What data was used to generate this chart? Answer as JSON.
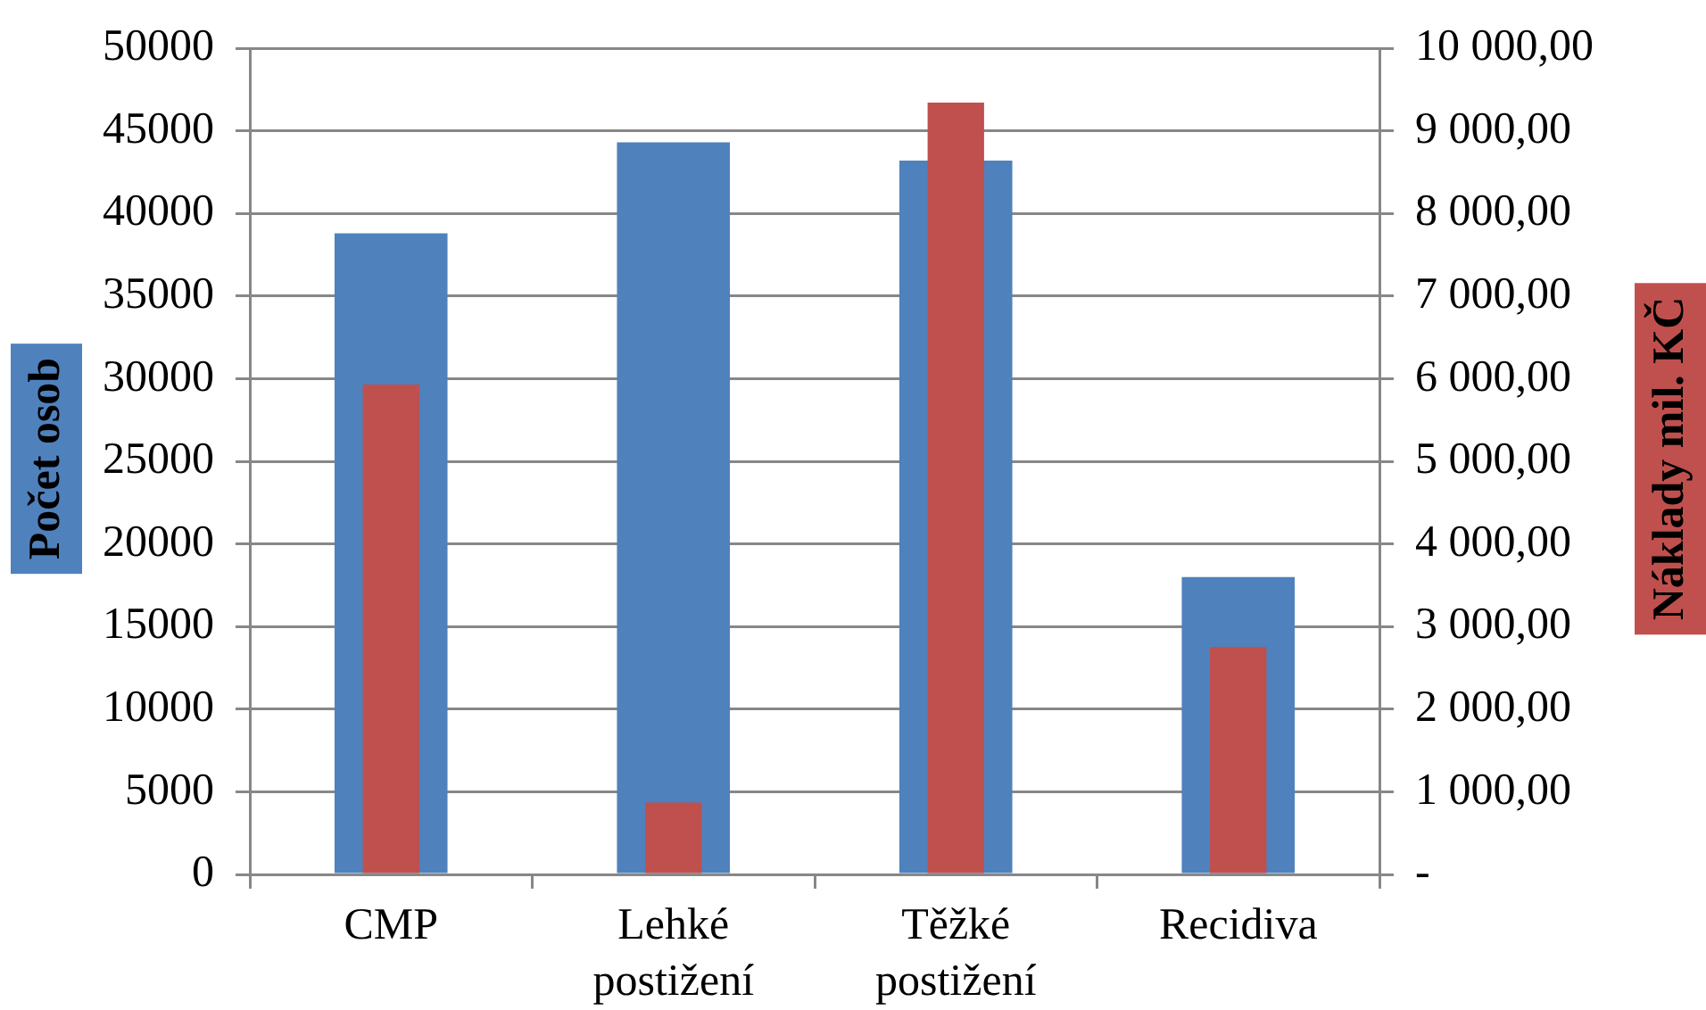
{
  "chart_data": {
    "type": "bar",
    "categories": [
      "CMP",
      "Lehké postižení",
      "Těžké postižení",
      "Recidiva"
    ],
    "ylabel": "Počet osob",
    "y2label": "Náklady mil. KČ",
    "series": [
      {
        "color": "#4f81bd",
        "values": [
          38800,
          44300,
          43200,
          18000
        ]
      },
      {
        "color": "#c0504d",
        "axis": "y2",
        "values": [
          5930,
          870,
          9340,
          2750
        ]
      }
    ],
    "ylim": [
      0,
      50000
    ],
    "yticks": [
      0,
      5000,
      10000,
      15000,
      20000,
      25000,
      30000,
      35000,
      40000,
      45000,
      50000
    ],
    "y2lim": [
      0,
      10000
    ],
    "y2ticks": [
      {
        "value": 0,
        "label": "-"
      },
      {
        "value": 1000,
        "label": "1 000,00"
      },
      {
        "value": 2000,
        "label": "2 000,00"
      },
      {
        "value": 3000,
        "label": "3 000,00"
      },
      {
        "value": 4000,
        "label": "4 000,00"
      },
      {
        "value": 5000,
        "label": "5 000,00"
      },
      {
        "value": 6000,
        "label": "6 000,00"
      },
      {
        "value": 7000,
        "label": "7 000,00"
      },
      {
        "value": 8000,
        "label": "8 000,00"
      },
      {
        "value": 9000,
        "label": "9 000,00"
      },
      {
        "value": 10000,
        "label": "10 000,00"
      }
    ],
    "grid": "y"
  }
}
